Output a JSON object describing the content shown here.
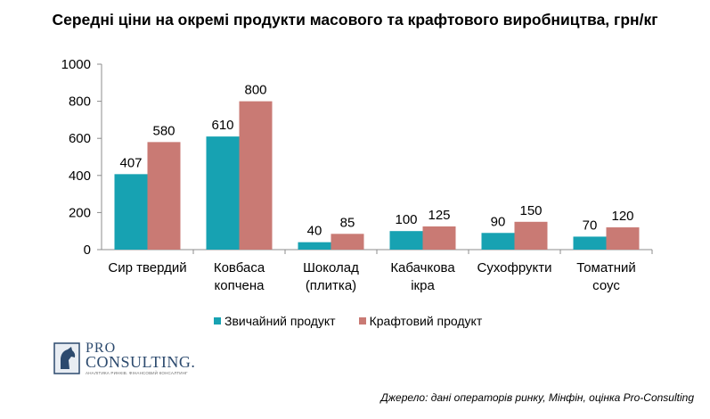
{
  "chart_data": {
    "type": "bar",
    "title": "Середні ціни на окремі продукти масового та крафтового виробництва, грн/кг",
    "categories": [
      [
        "Сир твердий"
      ],
      [
        "Ковбаса",
        "копчена"
      ],
      [
        "Шоколад",
        "(плитка)"
      ],
      [
        "Кабачкова",
        "ікра"
      ],
      [
        "Сухофрукти"
      ],
      [
        "Томатний",
        "соус"
      ]
    ],
    "series": [
      {
        "name": "Звичайний продукт",
        "color": "#17a2b2",
        "values": [
          407,
          610,
          40,
          100,
          90,
          70
        ]
      },
      {
        "name": "Крафтовий продукт",
        "color": "#c97a74",
        "values": [
          580,
          800,
          85,
          125,
          150,
          120
        ]
      }
    ],
    "ylim": [
      0,
      1000
    ],
    "yticks": [
      0,
      200,
      400,
      600,
      800,
      1000
    ],
    "grid": false,
    "legend": "bottom"
  },
  "logo": {
    "pro": "PRO",
    "consulting": "CONSULTING.",
    "tagline": "АНАЛІТИКА РИНКІВ. ФІНАНСОВИЙ КОНСАЛТИНГ"
  },
  "source": "Джерело: дані операторів ринку, Мінфін, оцінка Pro-Consulting"
}
